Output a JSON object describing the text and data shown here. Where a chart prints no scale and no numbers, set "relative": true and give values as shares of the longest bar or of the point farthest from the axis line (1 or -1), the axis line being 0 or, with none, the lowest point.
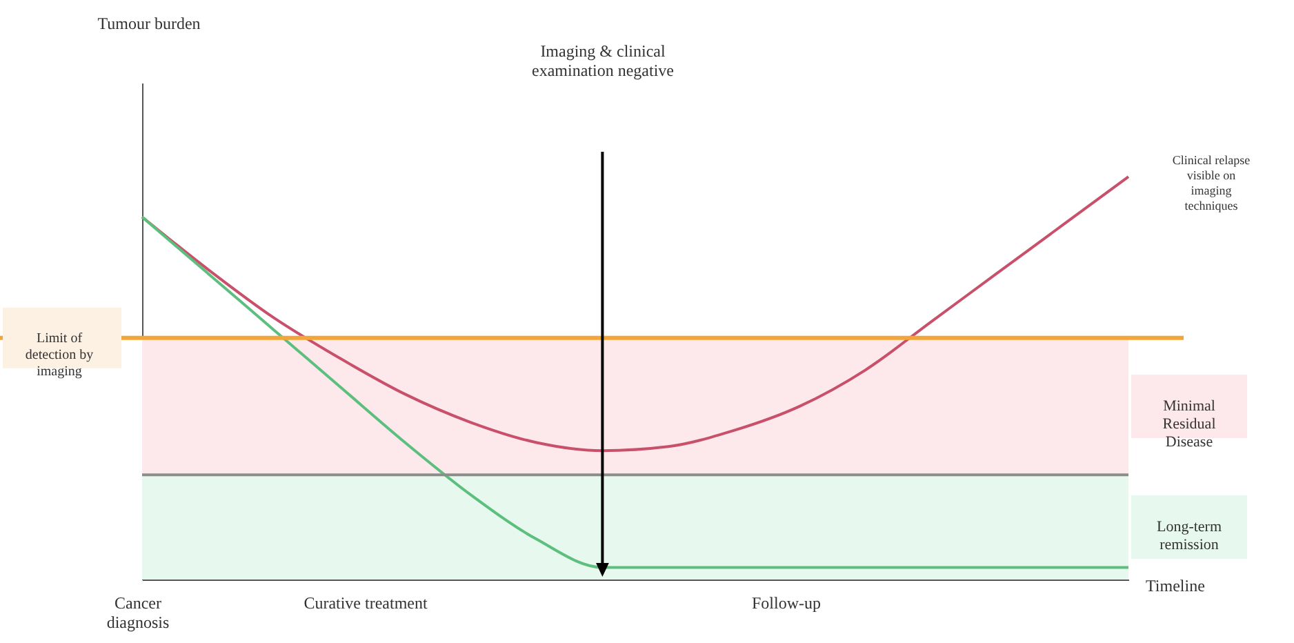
{
  "chart_data": {
    "type": "line",
    "relative": true,
    "xlabel": "Timeline",
    "categories": [
      null,
      null,
      null,
      null,
      null,
      null,
      null,
      null,
      null,
      null,
      null,
      null,
      null,
      null,
      null,
      null
    ],
    "series": [
      {
        "color": "#c9506a",
        "values": [
          0.9,
          0.77,
          0.65,
          0.55,
          0.46,
          0.39,
          0.34,
          0.32,
          0.33,
          0.37,
          0.43,
          0.52,
          0.64,
          0.76,
          0.88,
          1.0
        ]
      },
      {
        "color": "#5cbf7e",
        "values": [
          0.9,
          0.76,
          0.62,
          0.48,
          0.34,
          0.21,
          0.1,
          0.03,
          0.03,
          0.03,
          0.03,
          0.03,
          0.03,
          0.03,
          0.03,
          0.03
        ]
      }
    ],
    "bands": [
      {
        "axis": "y",
        "from": 0.26,
        "to": 0.6,
        "label": "Minimal Residual Disease",
        "color": "#fde9eb"
      },
      {
        "axis": "y",
        "from": 0,
        "to": 0.26,
        "label": "Long-term remission",
        "color": "#e7f8ee"
      }
    ],
    "ref_lines": [
      {
        "axis": "y",
        "value": 0.6,
        "label": "Limit of detection by imaging",
        "color": "#f2a63a"
      },
      {
        "axis": "y",
        "value": 0.26,
        "color": "#8c8c8c"
      }
    ],
    "annotations": [
      "Cancer diagnosis",
      "Curative treatment",
      "Follow-up",
      "Clinical relapse visible on imaging techniques",
      "Imaging & clinical examination negative",
      "Tumour burden"
    ],
    "marker": "none",
    "line_style": "solid",
    "grid": false
  }
}
